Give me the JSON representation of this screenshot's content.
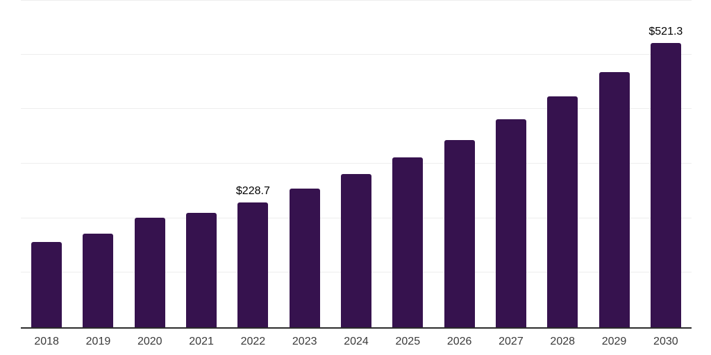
{
  "chart_data": {
    "type": "bar",
    "title": "",
    "xlabel": "",
    "ylabel": "",
    "categories": [
      "2018",
      "2019",
      "2020",
      "2021",
      "2022",
      "2023",
      "2024",
      "2025",
      "2026",
      "2027",
      "2028",
      "2029",
      "2030"
    ],
    "values": [
      156.5,
      172.1,
      200.9,
      209.5,
      228.7,
      253.9,
      280.4,
      310.9,
      343.0,
      381.2,
      422.9,
      468.3,
      521.3
    ],
    "value_labels": [
      "",
      "",
      "",
      "",
      "$228.7",
      "",
      "",
      "",
      "",
      "",
      "",
      "",
      "$521.3"
    ],
    "ylim": [
      0,
      600
    ],
    "grid_interval": 100,
    "grid": true,
    "legend": false,
    "bar_color": "#36124E",
    "grid_color": "#EDEDED",
    "axis_color": "#2B2B2B",
    "tick_label_color": "#3A3A3A",
    "value_label_color": "#000000"
  }
}
